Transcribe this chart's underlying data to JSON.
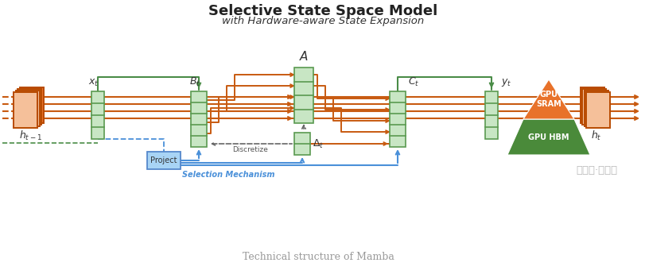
{
  "title": "Selective State Space Model",
  "subtitle": "with Hardware-aware State Expansion",
  "footer": "Technical structure of Mamba",
  "bg_color": "#ffffff",
  "orange": "#E8722A",
  "orange_light": "#F5C09A",
  "orange_dark": "#B84A00",
  "green_fill": "#C8E6C4",
  "green_edge": "#5A9A50",
  "blue": "#4A90D9",
  "blue_sel": "#3A80C9",
  "arr_orange": "#C85A10",
  "arr_green": "#4A8C47",
  "gray_dash": "#666666",
  "watermark": "公众号·新智元"
}
